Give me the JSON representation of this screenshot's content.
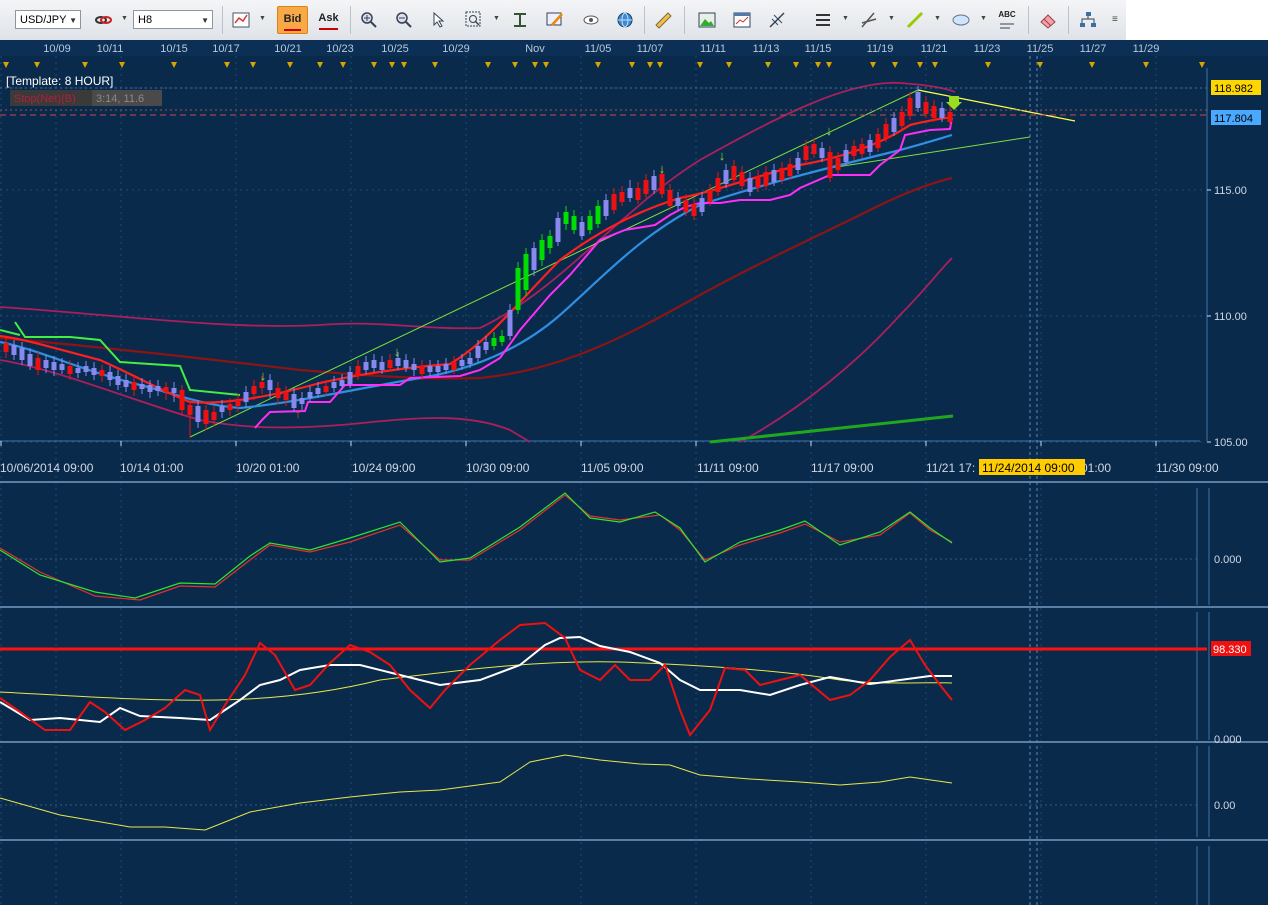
{
  "toolbar": {
    "symbol": "USD/JPY",
    "timeframe": "H8",
    "bid_label": "Bid",
    "ask_label": "Ask",
    "abc_label": "ABC"
  },
  "main_chart": {
    "template_label": "[Template: 8 HOUR]",
    "stop_label": "Stop(Net)(B)",
    "stop_values": "3:14, 11.6",
    "price_axis": [
      "115.00",
      "110.00",
      "105.00"
    ],
    "price_high_tag": "118.982",
    "price_last_tag": "117.804",
    "top_dates": [
      "10/09",
      "10/11",
      "10/15",
      "10/17",
      "10/21",
      "10/23",
      "10/25",
      "10/29",
      "Nov",
      "11/05",
      "11/07",
      "11/11",
      "11/13",
      "11/15",
      "11/19",
      "11/21",
      "11/23",
      "11/25",
      "11/27",
      "11/29"
    ],
    "bottom_dates": [
      "10/06/2014 09:00",
      "10/14 01:00",
      "10/20 01:00",
      "10/24 09:00",
      "10/30 09:00",
      "11/05 09:00",
      "11/11 09:00",
      "11/17 09:00",
      "11/21 17:",
      "01:00",
      "11/30 09:00"
    ],
    "cursor_date": "11/24/2014 09:00"
  },
  "panel1": {
    "axis": [
      "0.000"
    ]
  },
  "panel2": {
    "axis": [
      "0.000"
    ],
    "level_tag": "98.330"
  },
  "panel3": {
    "axis": [
      "0.00"
    ]
  },
  "colors": {
    "background": "#0a2a4c",
    "bull_candle": "#00dd00",
    "bear_candle": "#ee1111",
    "neutral_candle": "#8888ee",
    "high_tag": "#ffd700",
    "last_tag": "#4aa8ff",
    "level_tag": "#ee1111"
  }
}
